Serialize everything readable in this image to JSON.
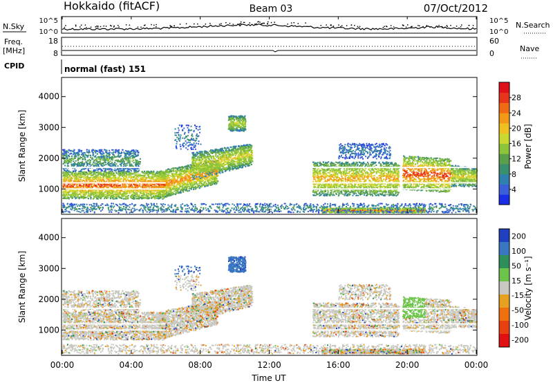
{
  "header": {
    "station": "Hokkaido (fitACF)",
    "beam": "Beam 03",
    "date": "07/Oct/2012"
  },
  "top_panels": {
    "nsky_label": "N.Sky",
    "nsearch_label": "N.Search",
    "freq_label_1": "Freq.",
    "freq_label_2": "[MHz]",
    "nave_label": "Nave",
    "cpid_label": "CPID",
    "cpid_value": "normal (fast) 151",
    "nsky_ticks": [
      "10^5",
      "10^0"
    ],
    "nsearch_ticks": [
      "10^5",
      "10^0"
    ],
    "freq_ticks": [
      "18",
      "8"
    ],
    "nave_ticks": [
      "60",
      "0"
    ],
    "nsky_line": "#000000",
    "nsearch_line": "#000000"
  },
  "chart_data": [
    {
      "type": "heatmap",
      "name": "power",
      "ylabel": "Slant Range [km]",
      "xlabel": "",
      "yticks": [
        1000,
        2000,
        3000,
        4000
      ],
      "ylim": [
        200,
        4600
      ],
      "xlim": [
        0,
        24
      ],
      "colorbar_label": "Power [dB]",
      "colorbar_ticks": [
        4,
        8,
        12,
        16,
        20,
        24,
        28
      ],
      "colorbar_range": [
        0,
        32
      ],
      "colorbar_colors": [
        "#1a2ee6",
        "#3a5fd9",
        "#2f7fb0",
        "#3a8f6e",
        "#5aa04a",
        "#8cc43a",
        "#c9d92f",
        "#f0c020",
        "#f29a18",
        "#f06a14",
        "#e8341a",
        "#e0101a"
      ]
    },
    {
      "type": "heatmap",
      "name": "velocity",
      "ylabel": "Slant Range [km]",
      "xlabel": "Time UT",
      "yticks": [
        1000,
        2000,
        3000,
        4000
      ],
      "ylim": [
        200,
        4600
      ],
      "xlim": [
        0,
        24
      ],
      "xticks": [
        "00:00",
        "04:00",
        "08:00",
        "12:00",
        "16:00",
        "20:00",
        "00:00"
      ],
      "colorbar_label": "Velocity [m s⁻¹]",
      "colorbar_ticks": [
        "200",
        "100",
        "50",
        "15",
        "-15",
        "-50",
        "-100",
        "-200"
      ],
      "colorbar_colors": [
        "#2040c0",
        "#3878c0",
        "#2f8f5a",
        "#6cc44a",
        "#c8c8c0",
        "#e8a020",
        "#f07010",
        "#e84010",
        "#e01010"
      ]
    }
  ]
}
